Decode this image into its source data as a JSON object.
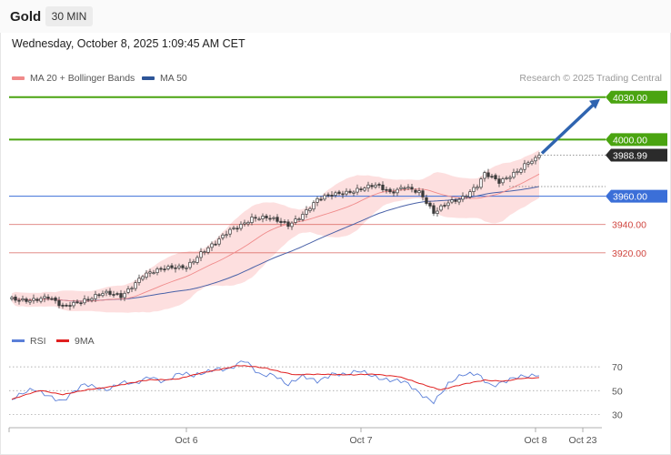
{
  "header": {
    "title": "Gold",
    "timeframe": "30 MIN"
  },
  "datetime": "Wednesday, October 8, 2025 1:09:45 AM CET",
  "legend": {
    "ma20_label": "MA 20 + Bollinger Bands",
    "ma50_label": "MA 50",
    "credit": "Research © 2025 Trading Central"
  },
  "rsi_legend": {
    "rsi_label": "RSI",
    "ma_label": "9MA"
  },
  "colors": {
    "green": "#4aa410",
    "blue": "#3b6fd8",
    "red": "#d0453f",
    "ma20": "#f08a8a",
    "ma50": "#4a62a8",
    "band": "#fcd4d4",
    "candle": "#3a3a3a",
    "arrow": "#2f64b0",
    "rsi": "#5b7fd8",
    "rsi_ma": "#e02020"
  },
  "chart_data": [
    {
      "type": "candlestick",
      "name": "price",
      "title": "Gold",
      "ylim": [
        3871,
        4044
      ],
      "x_ticks": [
        {
          "label": "Oct 6",
          "index": 48
        },
        {
          "label": "Oct 7",
          "index": 96
        },
        {
          "label": "Oct 8",
          "index": 144
        },
        {
          "label": "Oct 23",
          "index": 157
        }
      ],
      "last_price": "3988.99",
      "levels": [
        {
          "label": "4030.00",
          "value": 4030,
          "style": "green-major"
        },
        {
          "label": "4000.00",
          "value": 4000,
          "style": "green-major"
        },
        {
          "label": "3960.00",
          "value": 3960,
          "style": "blue-major"
        },
        {
          "label": "3940.00",
          "value": 3940,
          "style": "red-minor"
        },
        {
          "label": "3920.00",
          "value": 3920,
          "style": "red-minor"
        }
      ],
      "projection": {
        "from": 3988.99,
        "to": 4030
      },
      "close_anchors": [
        [
          0,
          3887
        ],
        [
          10,
          3888
        ],
        [
          14,
          3881
        ],
        [
          18,
          3886
        ],
        [
          25,
          3891
        ],
        [
          30,
          3889
        ],
        [
          36,
          3905
        ],
        [
          42,
          3908
        ],
        [
          48,
          3911
        ],
        [
          52,
          3920
        ],
        [
          56,
          3926
        ],
        [
          60,
          3936
        ],
        [
          64,
          3942
        ],
        [
          66,
          3945
        ],
        [
          70,
          3944
        ],
        [
          76,
          3940
        ],
        [
          80,
          3948
        ],
        [
          84,
          3957
        ],
        [
          90,
          3962
        ],
        [
          96,
          3966
        ],
        [
          100,
          3967
        ],
        [
          104,
          3962
        ],
        [
          108,
          3968
        ],
        [
          112,
          3963
        ],
        [
          116,
          3947
        ],
        [
          120,
          3956
        ],
        [
          124,
          3960
        ],
        [
          128,
          3967
        ],
        [
          130,
          3975
        ],
        [
          134,
          3970
        ],
        [
          138,
          3977
        ],
        [
          142,
          3984
        ],
        [
          145,
          3986
        ]
      ]
    },
    {
      "type": "line",
      "name": "rsi",
      "title": "RSI",
      "ylim": [
        25,
        80
      ],
      "y_ticks": [
        30,
        50,
        70
      ],
      "series": [
        {
          "name": "RSI",
          "anchors": [
            [
              0,
              43
            ],
            [
              6,
              50
            ],
            [
              10,
              47
            ],
            [
              14,
              42
            ],
            [
              20,
              54
            ],
            [
              26,
              52
            ],
            [
              30,
              57
            ],
            [
              34,
              54
            ],
            [
              38,
              62
            ],
            [
              42,
              59
            ],
            [
              46,
              64
            ],
            [
              50,
              61
            ],
            [
              56,
              70
            ],
            [
              60,
              68
            ],
            [
              64,
              74
            ],
            [
              68,
              64
            ],
            [
              72,
              65
            ],
            [
              76,
              54
            ],
            [
              80,
              61
            ],
            [
              84,
              59
            ],
            [
              88,
              65
            ],
            [
              92,
              62
            ],
            [
              96,
              66
            ],
            [
              100,
              63
            ],
            [
              104,
              59
            ],
            [
              108,
              56
            ],
            [
              112,
              48
            ],
            [
              116,
              42
            ],
            [
              120,
              55
            ],
            [
              124,
              62
            ],
            [
              128,
              65
            ],
            [
              132,
              55
            ],
            [
              136,
              57
            ],
            [
              140,
              61
            ],
            [
              145,
              65
            ]
          ]
        },
        {
          "name": "9MA",
          "anchors": [
            [
              0,
              43
            ],
            [
              8,
              50
            ],
            [
              14,
              47
            ],
            [
              22,
              51
            ],
            [
              30,
              55
            ],
            [
              38,
              59
            ],
            [
              46,
              60
            ],
            [
              54,
              66
            ],
            [
              62,
              71
            ],
            [
              70,
              69
            ],
            [
              78,
              63
            ],
            [
              86,
              64
            ],
            [
              94,
              63
            ],
            [
              100,
              64
            ],
            [
              106,
              62
            ],
            [
              112,
              56
            ],
            [
              118,
              51
            ],
            [
              124,
              55
            ],
            [
              130,
              59
            ],
            [
              136,
              58
            ],
            [
              140,
              60
            ],
            [
              145,
              61
            ]
          ]
        }
      ]
    }
  ]
}
